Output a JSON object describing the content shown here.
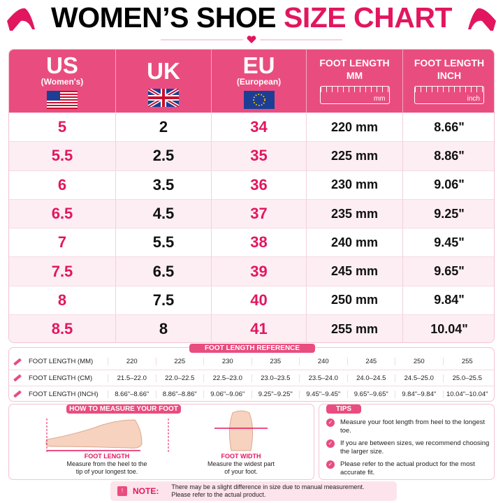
{
  "title": {
    "main": "WOMEN’S SHOE",
    "accent": "SIZE CHART"
  },
  "size_table": {
    "headers": [
      {
        "title": "US",
        "subtitle": "(Women's)"
      },
      {
        "title": "UK"
      },
      {
        "title": "EU",
        "subtitle": "(European)"
      },
      {
        "title": "FOOT LENGTH",
        "subtitle": "MM",
        "unit": "mm"
      },
      {
        "title": "FOOT LENGTH",
        "subtitle": "INCH",
        "unit": "inch"
      }
    ],
    "rows": [
      [
        "5",
        "2",
        "34",
        "220 mm",
        "8.66\""
      ],
      [
        "5.5",
        "2.5",
        "35",
        "225 mm",
        "8.86\""
      ],
      [
        "6",
        "3.5",
        "36",
        "230 mm",
        "9.06\""
      ],
      [
        "6.5",
        "4.5",
        "37",
        "235 mm",
        "9.25\""
      ],
      [
        "7",
        "5.5",
        "38",
        "240 mm",
        "9.45\""
      ],
      [
        "7.5",
        "6.5",
        "39",
        "245 mm",
        "9.65\""
      ],
      [
        "8",
        "7.5",
        "40",
        "250 mm",
        "9.84\""
      ],
      [
        "8.5",
        "8",
        "41",
        "255 mm",
        "10.04\""
      ]
    ]
  },
  "reference": {
    "title": "FOOT LENGTH REFERENCE",
    "rows": [
      {
        "label": "FOOT LENGTH (MM)",
        "values": [
          "220",
          "225",
          "230",
          "235",
          "240",
          "245",
          "250",
          "255"
        ]
      },
      {
        "label": "FOOT LENGTH (CM)",
        "values": [
          "21.5–22.0",
          "22.0–22.5",
          "22.5–23.0",
          "23.0–23.5",
          "23.5–24.0",
          "24.0–24.5",
          "24.5–25.0",
          "25.0–25.5"
        ]
      },
      {
        "label": "FOOT LENGTH (INCH)",
        "values": [
          "8.66\"–8.66\"",
          "8.86\"–8.86\"",
          "9.06\"–9.06\"",
          "9.25\"–9.25\"",
          "9.45\"–9.45\"",
          "9.65\"–9.65\"",
          "9.84\"–9.84\"",
          "10.04\"–10.04\""
        ]
      }
    ]
  },
  "measure": {
    "title": "HOW TO MEASURE YOUR FOOT",
    "length": {
      "label": "FOOT LENGTH",
      "text": "Measure from the heel to the tip of your longest toe."
    },
    "width": {
      "label": "FOOT WIDTH",
      "text": "Measure the widest part of your foot."
    }
  },
  "tips": {
    "title": "TIPS",
    "items": [
      "Measure your foot length from heel to the longest toe.",
      "If you are between sizes, we recommend choosing the larger size.",
      "Please refer to the actual product for the most accurate fit."
    ]
  },
  "note": {
    "label": "NOTE:",
    "text": "There may be a slight difference in size due to manual measurement. Please refer to the actual product."
  }
}
